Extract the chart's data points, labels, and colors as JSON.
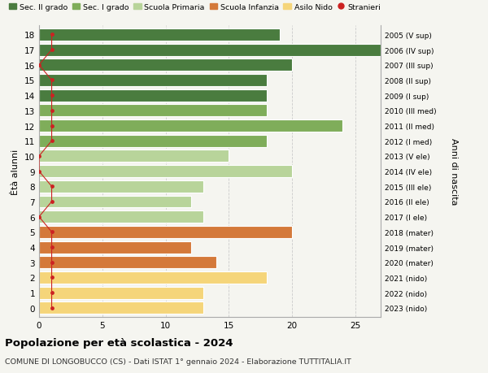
{
  "ages": [
    18,
    17,
    16,
    15,
    14,
    13,
    12,
    11,
    10,
    9,
    8,
    7,
    6,
    5,
    4,
    3,
    2,
    1,
    0
  ],
  "values": [
    19,
    27,
    20,
    18,
    18,
    18,
    24,
    18,
    15,
    20,
    13,
    12,
    13,
    20,
    12,
    14,
    18,
    13,
    13
  ],
  "right_labels": [
    "2005 (V sup)",
    "2006 (IV sup)",
    "2007 (III sup)",
    "2008 (II sup)",
    "2009 (I sup)",
    "2010 (III med)",
    "2011 (II med)",
    "2012 (I med)",
    "2013 (V ele)",
    "2014 (IV ele)",
    "2015 (III ele)",
    "2016 (II ele)",
    "2017 (I ele)",
    "2018 (mater)",
    "2019 (mater)",
    "2020 (mater)",
    "2021 (nido)",
    "2022 (nido)",
    "2023 (nido)"
  ],
  "bar_colors": [
    "#4a7c3f",
    "#4a7c3f",
    "#4a7c3f",
    "#4a7c3f",
    "#4a7c3f",
    "#7fad5a",
    "#7fad5a",
    "#7fad5a",
    "#b8d49a",
    "#b8d49a",
    "#b8d49a",
    "#b8d49a",
    "#b8d49a",
    "#d4793a",
    "#d4793a",
    "#d4793a",
    "#f5d57a",
    "#f5d57a",
    "#f5d57a"
  ],
  "stranieri_color": "#cc2222",
  "stranieri_x": [
    1,
    1,
    0,
    1,
    1,
    1,
    1,
    1,
    0,
    0,
    1,
    1,
    0,
    1,
    1,
    1,
    1,
    1,
    1
  ],
  "xlim": [
    0,
    27
  ],
  "xticks": [
    0,
    5,
    10,
    15,
    20,
    25
  ],
  "ylabel_left": "Ètà alunni",
  "ylabel_right": "Anni di nascita",
  "title": "Popolazione per età scolastica - 2024",
  "subtitle": "COMUNE DI LONGOBUCCO (CS) - Dati ISTAT 1° gennaio 2024 - Elaborazione TUTTITALIA.IT",
  "legend_items": [
    {
      "label": "Sec. II grado",
      "color": "#4a7c3f"
    },
    {
      "label": "Sec. I grado",
      "color": "#7fad5a"
    },
    {
      "label": "Scuola Primaria",
      "color": "#b8d49a"
    },
    {
      "label": "Scuola Infanzia",
      "color": "#d4793a"
    },
    {
      "label": "Asilo Nido",
      "color": "#f5d57a"
    },
    {
      "label": "Stranieri",
      "color": "#cc2222"
    }
  ],
  "bg_color": "#f5f5f0",
  "bar_height": 0.8
}
